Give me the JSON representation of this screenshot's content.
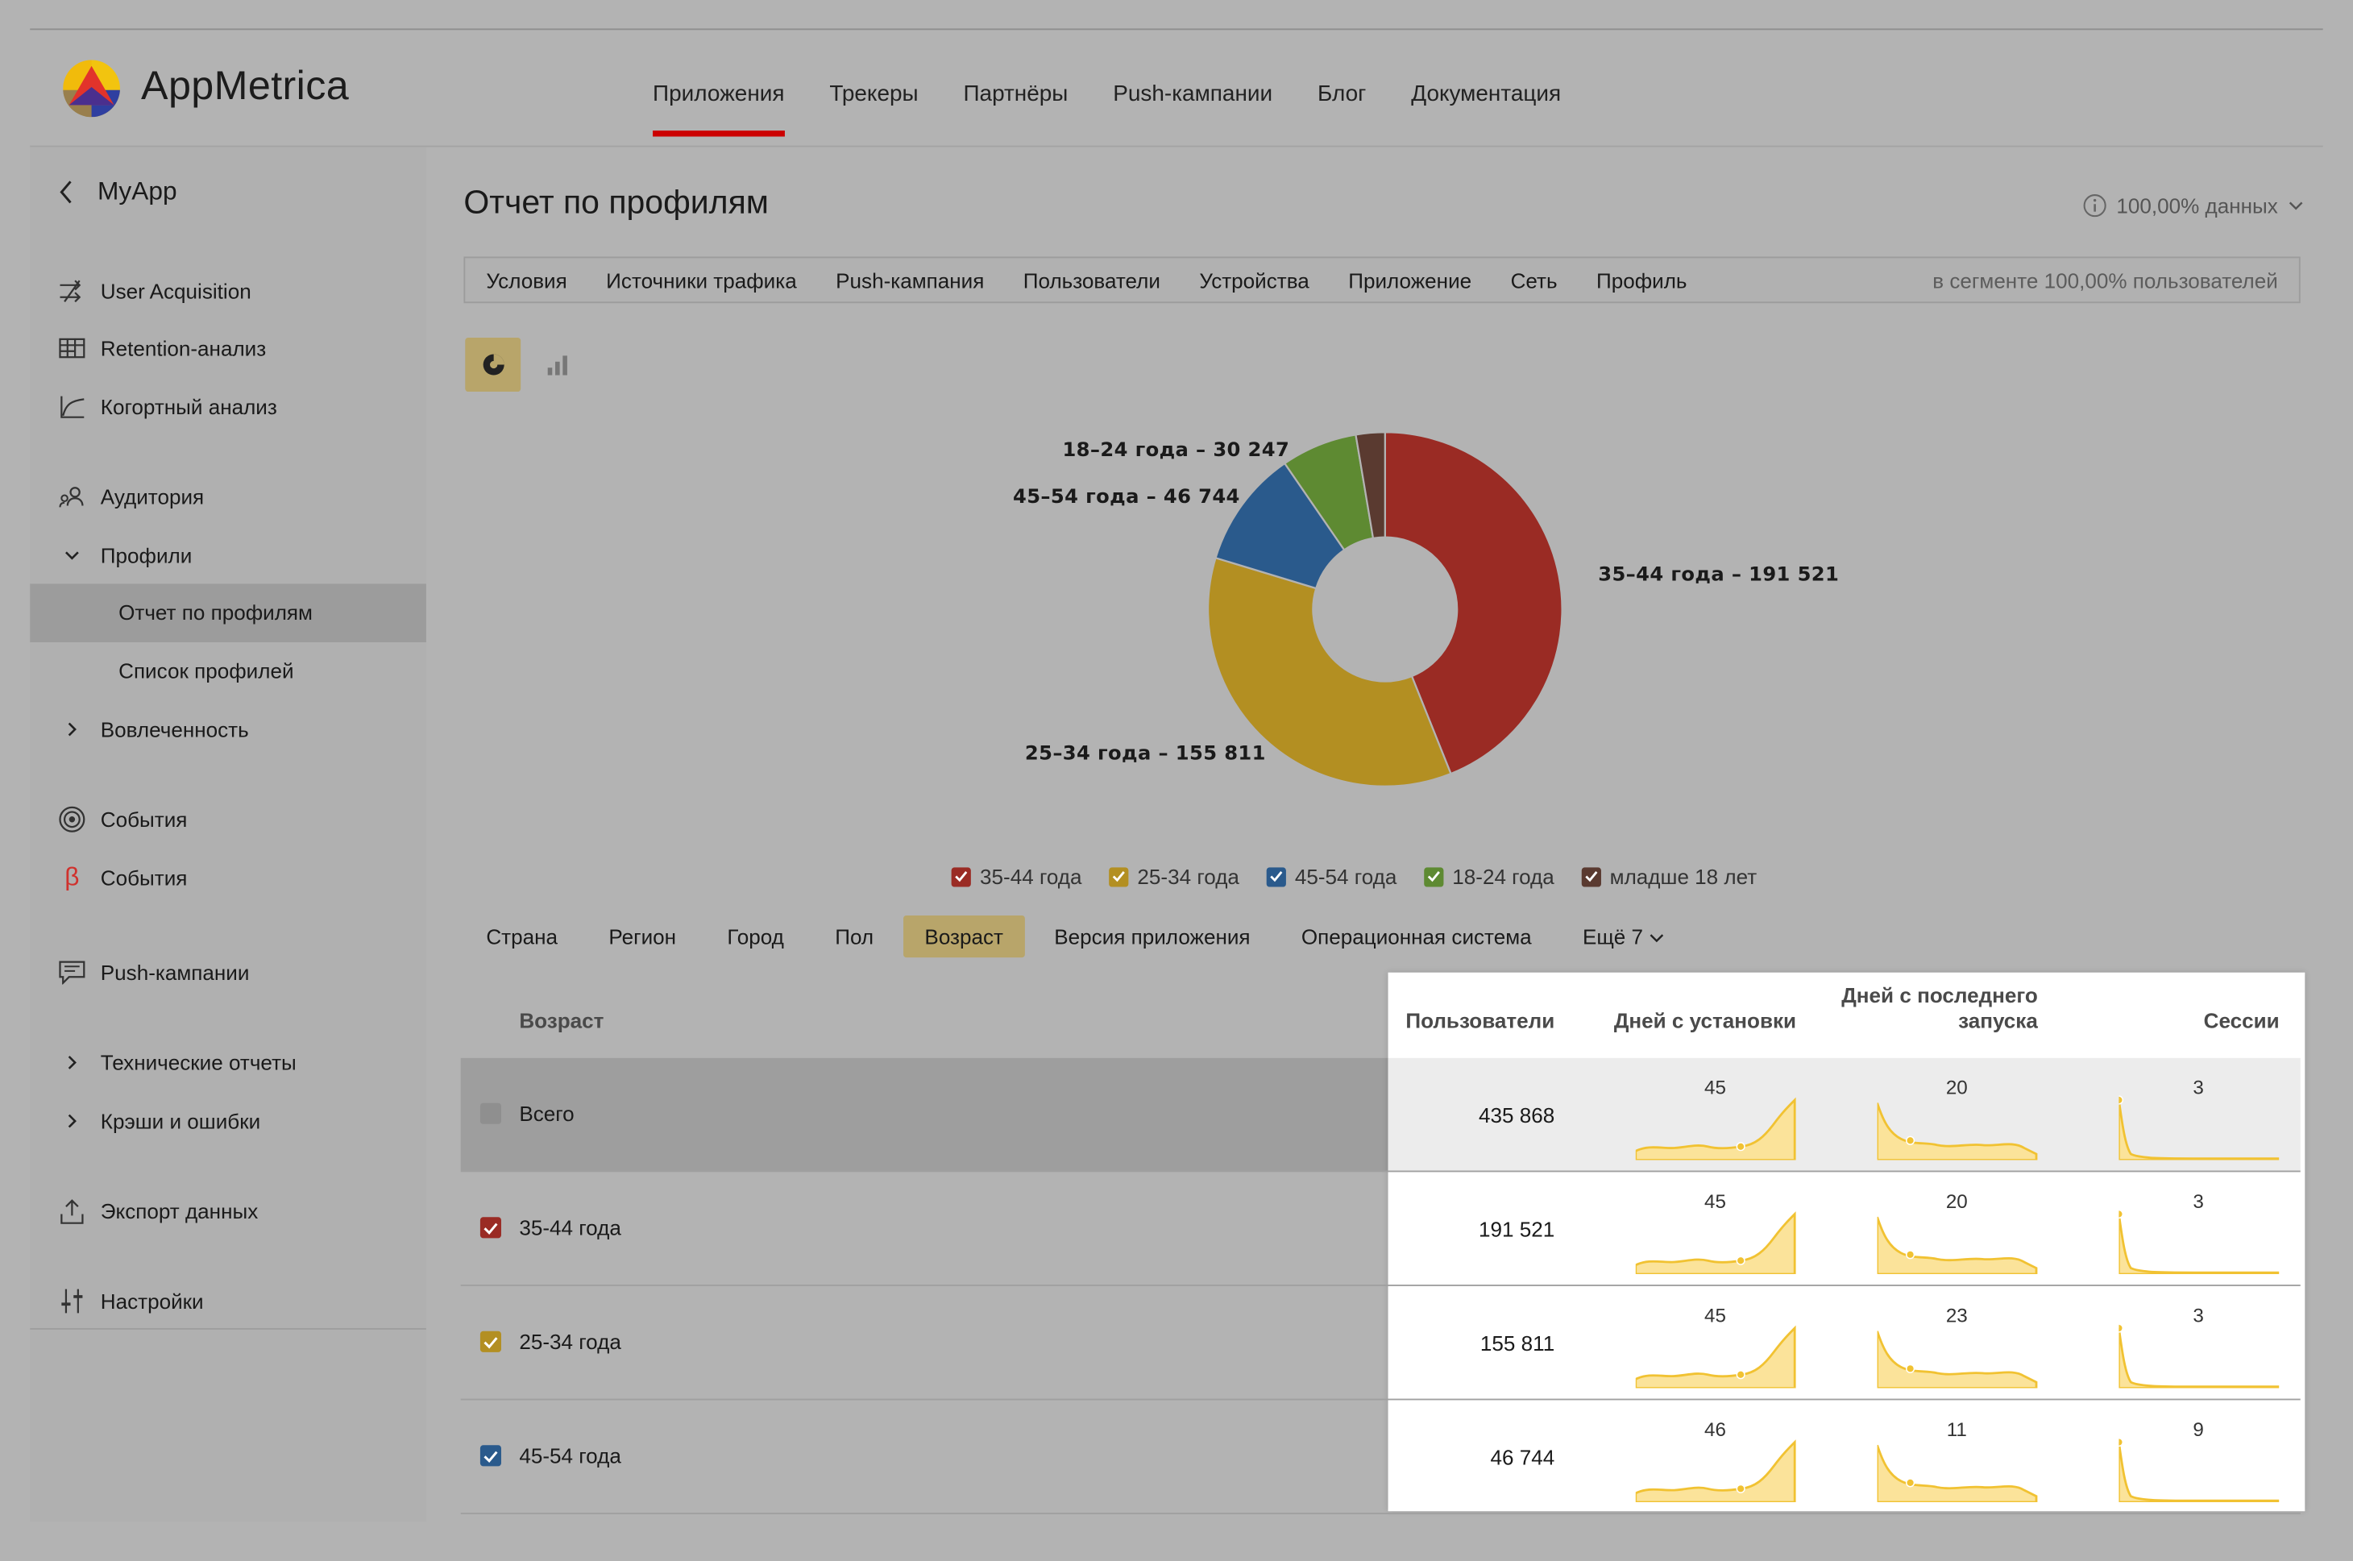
{
  "app": {
    "brand": "AppMetrica"
  },
  "nav": {
    "items": [
      {
        "label": "Приложения",
        "active": true
      },
      {
        "label": "Трекеры"
      },
      {
        "label": "Партнёры"
      },
      {
        "label": "Push-кампании"
      },
      {
        "label": "Блог"
      },
      {
        "label": "Документация"
      }
    ]
  },
  "sidebar": {
    "app_name": "MyApp",
    "items": {
      "user_acq": "User Acquisition",
      "retention": "Retention-анализ",
      "cohort": "Когортный анализ",
      "audience": "Аудитория",
      "profiles": "Профили",
      "profile_report": "Отчет по профилям",
      "profile_list": "Список профилей",
      "engagement": "Вовлеченность",
      "events": "События",
      "events_beta": "События",
      "push": "Push-кампании",
      "tech": "Технические отчеты",
      "crashes": "Крэши и ошибки",
      "export": "Экспорт данных",
      "settings": "Настройки"
    }
  },
  "main": {
    "title": "Отчет по профилям",
    "data_pct": "100,00% данных",
    "filters": [
      "Условия",
      "Источники трафика",
      "Push-кампания",
      "Пользователи",
      "Устройства",
      "Приложение",
      "Сеть",
      "Профиль"
    ],
    "segment": "в сегменте 100,00% пользователей",
    "dimension_tabs": [
      "Страна",
      "Регион",
      "Город",
      "Пол",
      "Возраст",
      "Версия приложения",
      "Операционная система"
    ],
    "more_tab": "Ещё 7"
  },
  "chart_data": {
    "type": "pie",
    "donut": true,
    "slices": [
      {
        "label": "35-44 года",
        "value": 191521,
        "color": "#9a2b24",
        "callout": "35–44 года – 191 521"
      },
      {
        "label": "25-34 года",
        "value": 155811,
        "color": "#b38f22",
        "callout": "25–34 года – 155 811"
      },
      {
        "label": "45-54 года",
        "value": 46744,
        "color": "#2a5a8c",
        "callout": "45–54 года – 46 744"
      },
      {
        "label": "18-24 года",
        "value": 30247,
        "color": "#5e8a32",
        "callout": "18–24 года – 30 247"
      },
      {
        "label": "младше 18 лет",
        "value": 11545,
        "color": "#5a3a30",
        "callout": ""
      }
    ]
  },
  "table": {
    "dim_header": "Возраст",
    "headers": {
      "users": "Пользователи",
      "days_install": "Дней с установки",
      "days_last_line1": "Дней с последнего",
      "days_last_line2": "запуска",
      "sessions": "Сессии"
    },
    "rows": [
      {
        "label": "Всего",
        "users": "435 868",
        "days_install": "45",
        "days_last": "20",
        "sessions": "3",
        "color": "#8a8a8a",
        "checked": false
      },
      {
        "label": "35-44 года",
        "users": "191 521",
        "days_install": "45",
        "days_last": "20",
        "sessions": "3",
        "color": "#9a2b24",
        "checked": true
      },
      {
        "label": "25-34 года",
        "users": "155 811",
        "days_install": "45",
        "days_last": "23",
        "sessions": "3",
        "color": "#b38f22",
        "checked": true
      },
      {
        "label": "45-54 года",
        "users": "46 744",
        "days_install": "46",
        "days_last": "11",
        "sessions": "9",
        "color": "#2a5a8c",
        "checked": true
      }
    ]
  },
  "colors": {
    "accent": "#cc0000",
    "active_tab": "#b8a56a",
    "spark_fill": "#fbe39a",
    "spark_line": "#f1c232"
  }
}
